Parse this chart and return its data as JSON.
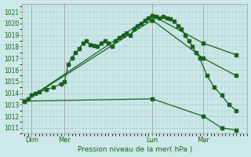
{
  "background_color": "#cce8e8",
  "grid_color": "#aacccc",
  "line_color": "#1a6020",
  "title": "Pression niveau de la mer( hPa )",
  "ylim": [
    1010.5,
    1021.7
  ],
  "yticks": [
    1011,
    1012,
    1013,
    1014,
    1015,
    1016,
    1017,
    1018,
    1019,
    1020,
    1021
  ],
  "xlim": [
    -0.3,
    30.5
  ],
  "day_labels": [
    "Dim",
    "Mer",
    "Lun",
    "Mar"
  ],
  "day_positions": [
    1.0,
    5.5,
    17.5,
    24.5
  ],
  "vline_positions": [
    1.0,
    5.5,
    17.5,
    24.5
  ],
  "lines": [
    {
      "x": [
        0,
        0.5,
        1,
        1.5,
        2,
        3,
        4,
        5,
        5.5,
        6,
        6.5,
        7,
        7.5,
        8,
        8.5,
        9,
        9.5,
        10,
        10.5,
        11,
        11.5,
        12,
        12.5,
        13,
        13.5,
        14,
        14.5,
        15,
        15.5,
        16,
        16.5,
        17,
        17.5,
        18,
        18.5,
        19,
        19.5,
        20,
        20.5,
        21,
        21.5,
        22,
        22.5,
        23,
        23.5,
        24,
        25,
        26,
        27,
        28,
        29
      ],
      "y": [
        1013.3,
        1013.5,
        1013.8,
        1014.0,
        1014.1,
        1014.3,
        1014.5,
        1014.8,
        1015.0,
        1016.5,
        1017.0,
        1017.5,
        1017.8,
        1018.3,
        1018.5,
        1018.2,
        1018.1,
        1018.0,
        1018.3,
        1018.5,
        1018.3,
        1018.0,
        1018.5,
        1018.8,
        1019.0,
        1019.2,
        1019.0,
        1019.5,
        1019.8,
        1020.0,
        1020.3,
        1020.5,
        1020.7,
        1020.6,
        1020.5,
        1020.6,
        1020.5,
        1020.4,
        1020.2,
        1019.8,
        1019.5,
        1019.0,
        1018.5,
        1018.0,
        1017.5,
        1017.0,
        1015.5,
        1014.5,
        1013.8,
        1013.0,
        1012.5
      ]
    },
    {
      "x": [
        0,
        17.5,
        24.5,
        29
      ],
      "y": [
        1013.3,
        1020.7,
        1018.3,
        1017.3
      ]
    },
    {
      "x": [
        0,
        17.5,
        24.5,
        29
      ],
      "y": [
        1013.3,
        1020.3,
        1017.0,
        1015.5
      ]
    },
    {
      "x": [
        0,
        17.5,
        24.5,
        27,
        29
      ],
      "y": [
        1013.3,
        1013.5,
        1012.0,
        1011.0,
        1010.8
      ]
    }
  ]
}
